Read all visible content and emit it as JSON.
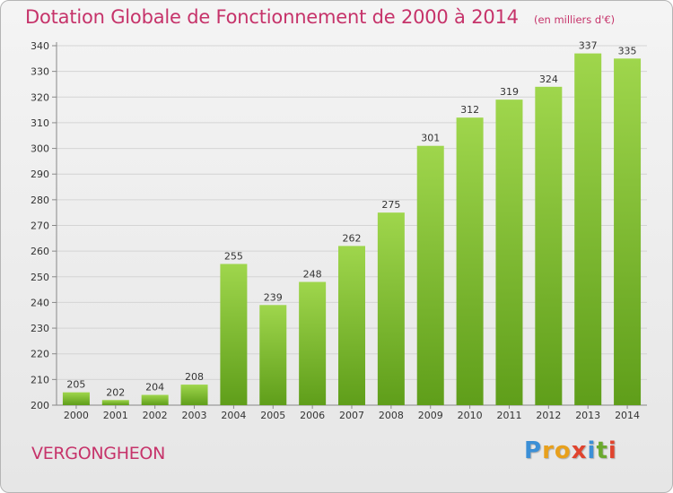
{
  "title": "Dotation Globale de Fonctionnement de 2000 à 2014",
  "unit_note": "(en milliers d'€)",
  "commune": "VERGONGHEON",
  "logo": {
    "text": "Proxiti",
    "letters": [
      "P",
      "r",
      "o",
      "x",
      "i",
      "t",
      "i"
    ],
    "colors": [
      "#3b8fd6",
      "#e8a01c",
      "#e8a01c",
      "#e0442e",
      "#3b8fd6",
      "#6aa92e",
      "#e0442e"
    ]
  },
  "colors": {
    "title": "#c6336a",
    "bar_top": "#9fd64c",
    "bar_bottom": "#5f9e1a",
    "grid": "#d4d4d4",
    "axis_text": "#333333"
  },
  "chart_data": {
    "type": "bar",
    "title": "Dotation Globale de Fonctionnement de 2000 à 2014",
    "subtitle": "(en milliers d'€)",
    "categories": [
      "2000",
      "2001",
      "2002",
      "2003",
      "2004",
      "2005",
      "2006",
      "2007",
      "2008",
      "2009",
      "2010",
      "2011",
      "2012",
      "2013",
      "2014"
    ],
    "values": [
      205,
      202,
      204,
      208,
      255,
      239,
      248,
      262,
      275,
      301,
      312,
      319,
      324,
      337,
      335
    ],
    "ylim": [
      200,
      340
    ],
    "yticks": [
      200,
      210,
      220,
      230,
      240,
      250,
      260,
      270,
      280,
      290,
      300,
      310,
      320,
      330,
      340
    ],
    "grid": true,
    "data_labels": true
  }
}
